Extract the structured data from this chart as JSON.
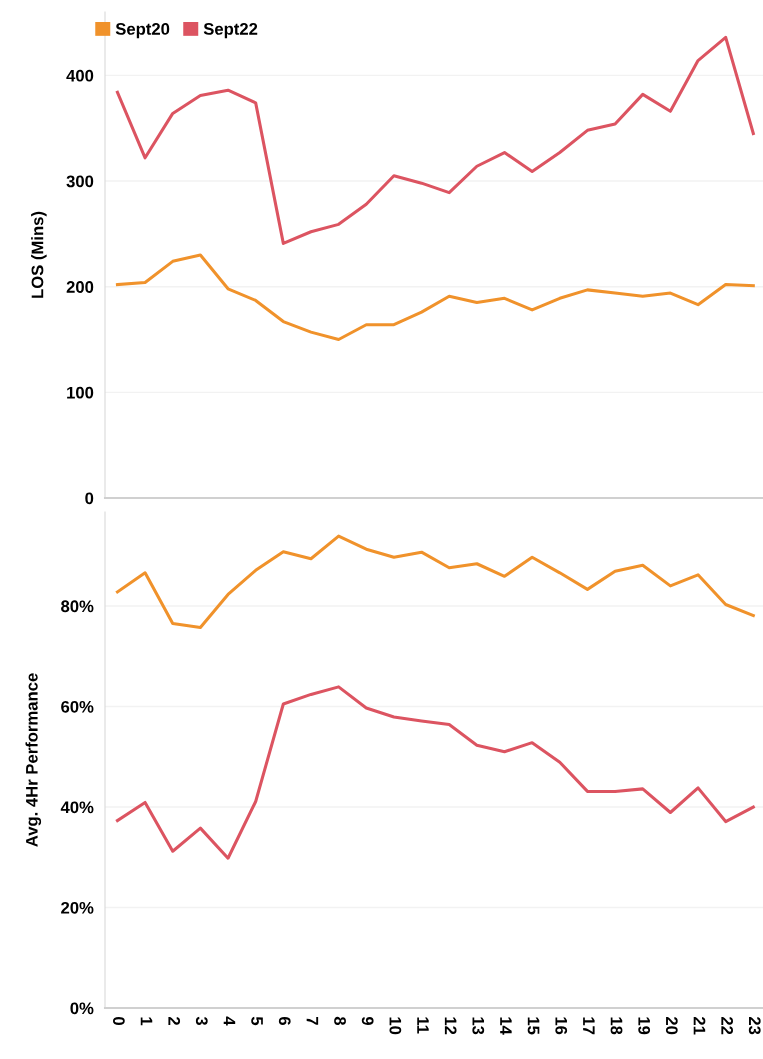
{
  "chart_data": [
    {
      "type": "line",
      "ylabel": "LOS (Mins)",
      "x": [
        0,
        1,
        2,
        3,
        4,
        5,
        6,
        7,
        8,
        9,
        10,
        11,
        12,
        13,
        14,
        15,
        16,
        17,
        18,
        19,
        20,
        21,
        22,
        23
      ],
      "series": [
        {
          "name": "Sept20",
          "color": "#f0922b",
          "values": [
            202,
            204,
            224,
            230,
            198,
            187,
            167,
            157,
            150,
            164,
            164,
            176,
            191,
            185,
            189,
            178,
            189,
            197,
            194,
            191,
            194,
            183,
            202,
            201
          ]
        },
        {
          "name": "Sept22",
          "color": "#dc5461",
          "values": [
            384,
            322,
            364,
            381,
            386,
            374,
            241,
            252,
            259,
            278,
            305,
            298,
            289,
            314,
            327,
            309,
            327,
            348,
            354,
            382,
            366,
            414,
            436,
            345
          ]
        }
      ],
      "xlim": [
        -0.45,
        23.35
      ],
      "ylim": [
        0,
        460
      ],
      "yticks": [
        0,
        100,
        200,
        300,
        400
      ],
      "grid": "y",
      "legend": "top left",
      "tick_labels": "y",
      "marker": "none",
      "line_style": "solid"
    },
    {
      "type": "line",
      "ylabel": "Avg. 4Hr Performance",
      "x": [
        0,
        1,
        2,
        3,
        4,
        5,
        6,
        7,
        8,
        9,
        10,
        11,
        12,
        13,
        14,
        15,
        16,
        17,
        18,
        19,
        20,
        21,
        22,
        23
      ],
      "series": [
        {
          "color": "#f0922b",
          "values": [
            82.8,
            86.6,
            76.5,
            75.7,
            82.3,
            87.1,
            90.8,
            89.4,
            93.9,
            91.3,
            89.7,
            90.7,
            87.6,
            88.4,
            85.9,
            89.7,
            86.6,
            83.3,
            86.9,
            88.1,
            84.0,
            86.2,
            80.3,
            78.1
          ]
        },
        {
          "color": "#dc5461",
          "values": [
            37.3,
            40.9,
            31.2,
            35.8,
            29.8,
            41.1,
            60.5,
            62.4,
            63.9,
            59.7,
            57.9,
            57.1,
            56.4,
            52.3,
            51.0,
            52.8,
            48.9,
            43.1,
            43.1,
            43.6,
            38.9,
            43.8,
            37.1,
            40.0
          ]
        }
      ],
      "xlim": [
        -0.45,
        23.35
      ],
      "xticks": [
        0,
        1,
        2,
        3,
        4,
        5,
        6,
        7,
        8,
        9,
        10,
        11,
        12,
        13,
        14,
        15,
        16,
        17,
        18,
        19,
        20,
        21,
        22,
        23
      ],
      "ylim": [
        0,
        98.7
      ],
      "yticks": [
        {
          "value": 0,
          "label": "0%"
        },
        {
          "value": 20,
          "label": "20%"
        },
        {
          "value": 40,
          "label": "40%"
        },
        {
          "value": 60,
          "label": "60%"
        },
        {
          "value": 80,
          "label": "80%"
        }
      ],
      "grid": "y",
      "marker": "none",
      "line_style": "solid"
    }
  ]
}
